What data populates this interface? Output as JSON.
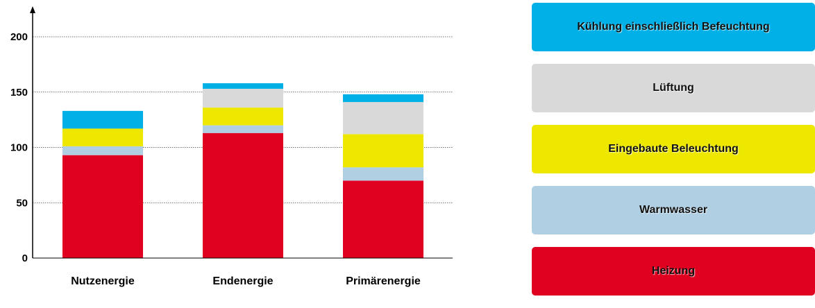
{
  "chart_data": {
    "type": "bar",
    "stacked": true,
    "categories": [
      "Nutzenergie",
      "Endenergie",
      "Primärenergie"
    ],
    "series": [
      {
        "name": "Heizung",
        "color": "#e00020",
        "values": [
          93,
          113,
          70
        ]
      },
      {
        "name": "Warmwasser",
        "color": "#b0cfe3",
        "values": [
          8,
          7,
          12
        ]
      },
      {
        "name": "Eingebaute Beleuchtung",
        "color": "#eee800",
        "values": [
          16,
          16,
          30
        ]
      },
      {
        "name": "Lüftung",
        "color": "#d9d9d9",
        "values": [
          0,
          17,
          29
        ]
      },
      {
        "name": "Kühlung einschließlich Befeuchtung",
        "color": "#00b0e6",
        "values": [
          16,
          5,
          7
        ]
      }
    ],
    "yticks": [
      "0",
      "50",
      "100",
      "150",
      "200"
    ],
    "ylim": [
      0,
      200
    ],
    "grid": "horizontal, dotted",
    "legend_position": "right",
    "title": "",
    "xlabel": "",
    "ylabel": ""
  }
}
